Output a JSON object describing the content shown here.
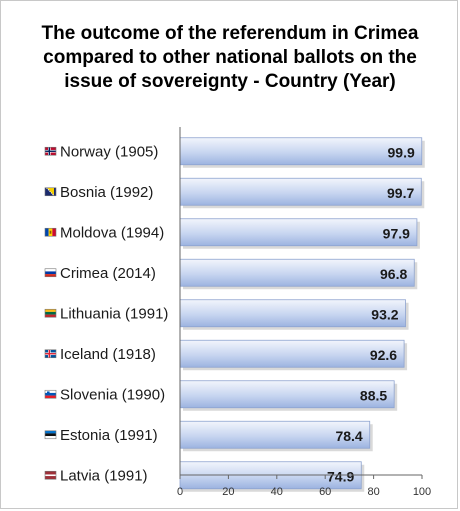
{
  "chart_data": {
    "type": "bar",
    "orientation": "horizontal",
    "title_lines": [
      "The outcome of the referendum in Crimea",
      "compared to other national ballots on the",
      "issue of sovereignty - Country (Year)"
    ],
    "categories": [
      "Norway (1905)",
      "Bosnia (1992)",
      "Moldova (1994)",
      "Crimea (2014)",
      "Lithuania (1991)",
      "Iceland (1918)",
      "Slovenia (1990)",
      "Estonia (1991)",
      "Latvia (1991)"
    ],
    "values": [
      99.9,
      99.7,
      97.9,
      96.8,
      93.2,
      92.6,
      88.5,
      78.4,
      74.9
    ],
    "value_labels": [
      "99.9",
      "99.7",
      "97.9",
      "96.8",
      "93.2",
      "92.6",
      "88.5",
      "78.4",
      "74.9"
    ],
    "flag_icons": [
      "norway-flag-icon",
      "bosnia-flag-icon",
      "moldova-flag-icon",
      "russia-flag-icon",
      "lithuania-flag-icon",
      "iceland-flag-icon",
      "slovenia-flag-icon",
      "estonia-flag-icon",
      "latvia-flag-icon"
    ],
    "xlim": [
      0,
      100
    ],
    "xticks": [
      0,
      20,
      40,
      60,
      80,
      100
    ],
    "xtick_labels": [
      "0",
      "20",
      "40",
      "60",
      "80",
      "100"
    ],
    "grid": false,
    "legend": "none",
    "colors": {
      "bar_light": "#f2f5fc",
      "bar_dark": "#9cb3e0",
      "bar_edge": "#8ea3cf",
      "axis": "#666666"
    }
  }
}
